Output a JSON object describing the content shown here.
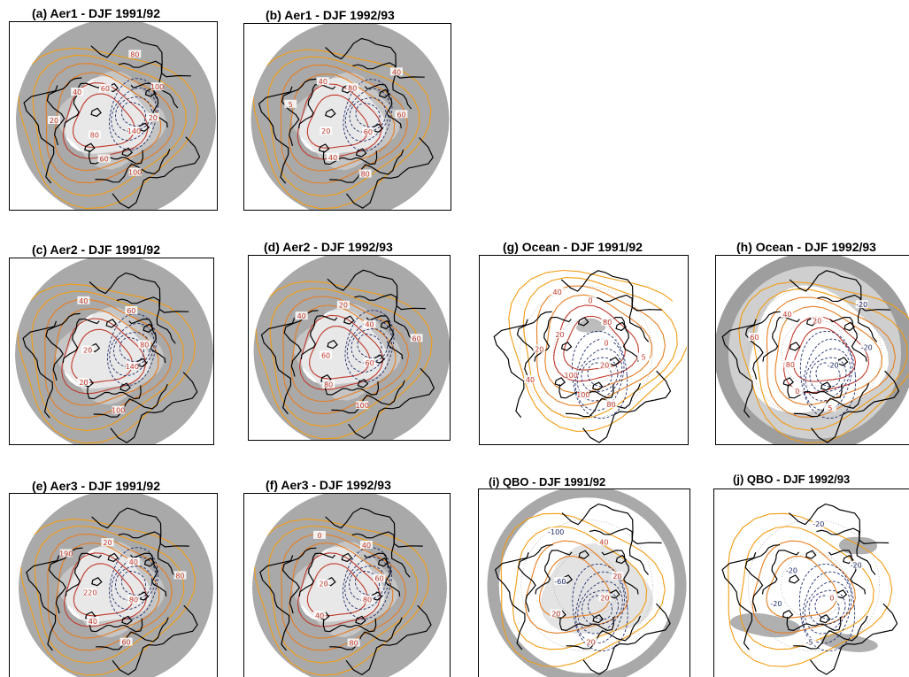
{
  "figure": {
    "panels": [
      {
        "id": "a",
        "title": "(a) Aer1 - DJF 1991/92",
        "variant": "aer",
        "contour_labels": [
          "140",
          "100",
          "60",
          "80",
          "20",
          "40",
          "60",
          "80",
          "100",
          "20"
        ],
        "colors": {
          "positive": "#c0392b",
          "positive_light": "#f39c12",
          "negative": "#1f2d6b",
          "shade": "#a9a9a9"
        }
      },
      {
        "id": "b",
        "title": "(b) Aer1 - DJF 1992/93",
        "variant": "aer",
        "contour_labels": [
          "60",
          "80",
          "40",
          "20",
          "5",
          "40",
          "80",
          "40",
          "60"
        ],
        "colors": {
          "positive": "#c0392b",
          "positive_light": "#f39c12",
          "negative": "#1f2d6b",
          "shade": "#a9a9a9"
        }
      },
      {
        "id": "c",
        "title": "(c) Aer2 - DJF 1991/92",
        "variant": "aer",
        "contour_labels": [
          "140",
          "100",
          "20",
          "20",
          "40",
          "60",
          "80"
        ],
        "colors": {
          "positive": "#c0392b",
          "positive_light": "#f39c12",
          "negative": "#1f2d6b",
          "shade": "#a9a9a9"
        }
      },
      {
        "id": "d",
        "title": "(d) Aer2 - DJF 1992/93",
        "variant": "aer",
        "contour_labels": [
          "60",
          "100",
          "80",
          "60",
          "40",
          "20",
          "40",
          "60"
        ],
        "colors": {
          "positive": "#c0392b",
          "positive_light": "#f39c12",
          "negative": "#1f2d6b",
          "shade": "#a9a9a9"
        }
      },
      {
        "id": "g",
        "title": "(g) Ocean - DJF 1991/92",
        "variant": "ocean91",
        "contour_labels": [
          "20",
          "80",
          "100",
          "100",
          "40",
          "20",
          "20",
          "40",
          "0",
          "80",
          "0",
          "5"
        ],
        "colors": {
          "positive": "#c0392b",
          "positive_light": "#f39c12",
          "negative": "#1f2d6b",
          "shade": "#a9a9a9"
        }
      },
      {
        "id": "h",
        "title": "(h) Ocean - DJF 1992/93",
        "variant": "ocean92",
        "contour_labels": [
          "-20",
          "5",
          "0",
          "80",
          "60",
          "40",
          "20",
          "-20",
          "-20"
        ],
        "colors": {
          "positive": "#c0392b",
          "positive_light": "#f39c12",
          "negative": "#1f2d6b",
          "shade": "#a9a9a9"
        }
      },
      {
        "id": "e",
        "title": "(e) Aer3 - DJF 1991/92",
        "variant": "aer",
        "contour_labels": [
          "80",
          "60",
          "40",
          "220",
          "190",
          "20",
          "40",
          "80"
        ],
        "colors": {
          "positive": "#c0392b",
          "positive_light": "#f39c12",
          "negative": "#1f2d6b",
          "shade": "#a9a9a9"
        }
      },
      {
        "id": "f",
        "title": "(f) Aer3 - DJF 1992/93",
        "variant": "aer",
        "contour_labels": [
          "80",
          "80",
          "40",
          "20",
          "0",
          "40",
          "60"
        ],
        "colors": {
          "positive": "#c0392b",
          "positive_light": "#f39c12",
          "negative": "#1f2d6b",
          "shade": "#a9a9a9"
        }
      },
      {
        "id": "i",
        "title": "(i) QBO - DJF 1991/92",
        "variant": "qbo91",
        "contour_labels": [
          "20",
          "20",
          "20",
          "-60",
          "-100",
          "40",
          "20"
        ],
        "colors": {
          "positive": "#c0392b",
          "positive_light": "#f39c12",
          "negative": "#1f2d6b",
          "shade": "#a9a9a9"
        }
      },
      {
        "id": "j",
        "title": "(j) QBO - DJF 1992/93",
        "variant": "qbo92",
        "contour_labels": [
          "0",
          "-5",
          "-20",
          "-20",
          "-20",
          "-20"
        ],
        "colors": {
          "positive": "#c0392b",
          "positive_light": "#f39c12",
          "negative": "#1f2d6b",
          "shade": "#a9a9a9"
        }
      }
    ]
  }
}
